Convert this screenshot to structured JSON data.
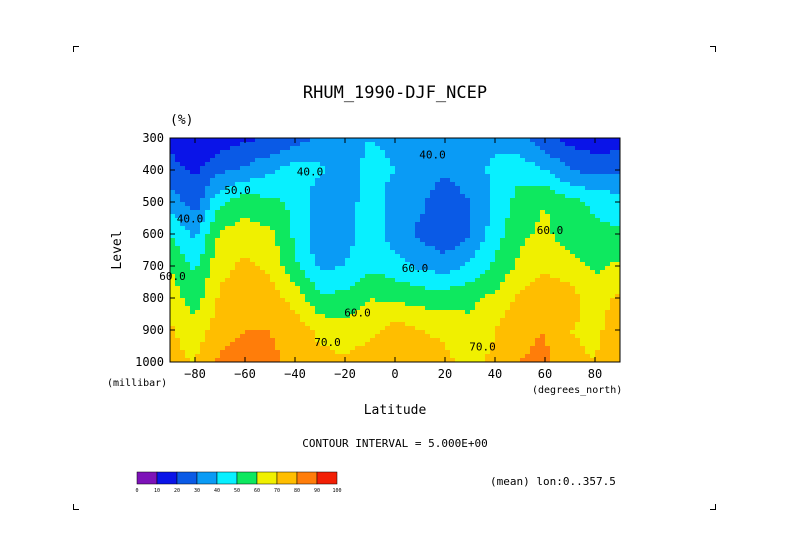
{
  "chart_data": {
    "type": "heatmap",
    "title": "RHUM_1990-DJF_NCEP",
    "units": "(%)",
    "xlabel": "Latitude",
    "ylabel": "Level",
    "x_unit": "(degrees_north)",
    "y_unit": "(millibar)",
    "xlim": [
      -90,
      90
    ],
    "ylim": [
      1000,
      300
    ],
    "x_ticks": [
      -80,
      -60,
      -40,
      -20,
      0,
      20,
      40,
      60,
      80
    ],
    "y_ticks": [
      300,
      400,
      500,
      600,
      700,
      800,
      900,
      1000
    ],
    "grid": false,
    "contour_interval_text": "CONTOUR INTERVAL = 5.000E+00",
    "mean_text": "(mean) lon:0..357.5",
    "contour_labels": [
      {
        "text": "50.0",
        "x": -63,
        "y": 465
      },
      {
        "text": "40.0",
        "x": 15,
        "y": 355
      },
      {
        "text": "40.0",
        "x": -34,
        "y": 408
      },
      {
        "text": "40.0",
        "x": -82,
        "y": 555
      },
      {
        "text": "60.0",
        "x": -89,
        "y": 735
      },
      {
        "text": "60.0",
        "x": 8,
        "y": 710
      },
      {
        "text": "60.0",
        "x": -15,
        "y": 848
      },
      {
        "text": "60.0",
        "x": 62,
        "y": 590
      },
      {
        "text": "70.0",
        "x": -27,
        "y": 940
      },
      {
        "text": "70.0",
        "x": 35,
        "y": 955
      }
    ],
    "colorbar": {
      "levels": [
        0,
        10,
        20,
        30,
        40,
        50,
        60,
        70,
        80,
        90,
        100
      ],
      "colors": [
        "#7d12b8",
        "#0a14e8",
        "#0a5ae6",
        "#0a9bf5",
        "#08f0ff",
        "#0ee85f",
        "#f0f000",
        "#ffbe00",
        "#ff7d0a",
        "#f21f05"
      ]
    },
    "levels": [
      300,
      400,
      500,
      600,
      700,
      800,
      900,
      1000
    ],
    "latitudes": [
      -90,
      -80,
      -70,
      -60,
      -50,
      -40,
      -30,
      -20,
      -10,
      0,
      10,
      20,
      30,
      40,
      50,
      60,
      70,
      80,
      90
    ],
    "values": [
      [
        15,
        10,
        14,
        18,
        20,
        25,
        32,
        36,
        40,
        38,
        36,
        33,
        38,
        38,
        33,
        22,
        16,
        14,
        15
      ],
      [
        25,
        18,
        28,
        32,
        38,
        45,
        42,
        36,
        43,
        40,
        35,
        31,
        36,
        42,
        46,
        40,
        30,
        26,
        28
      ],
      [
        35,
        25,
        48,
        55,
        52,
        48,
        32,
        36,
        44,
        36,
        32,
        24,
        30,
        42,
        55,
        60,
        53,
        48,
        44
      ],
      [
        50,
        38,
        62,
        65,
        62,
        48,
        32,
        36,
        45,
        35,
        28,
        22,
        30,
        45,
        58,
        62,
        55,
        52,
        52
      ],
      [
        60,
        48,
        67,
        72,
        68,
        52,
        38,
        40,
        48,
        44,
        38,
        35,
        42,
        52,
        62,
        68,
        64,
        58,
        62
      ],
      [
        65,
        55,
        72,
        76,
        74,
        66,
        52,
        53,
        60,
        58,
        56,
        55,
        58,
        62,
        72,
        78,
        74,
        66,
        72
      ],
      [
        72,
        64,
        76,
        80,
        80,
        76,
        67,
        63,
        66,
        75,
        70,
        68,
        62,
        70,
        78,
        80,
        70,
        68,
        75
      ],
      [
        72,
        70,
        82,
        84,
        82,
        78,
        74,
        72,
        78,
        80,
        76,
        72,
        68,
        72,
        80,
        82,
        72,
        70,
        76
      ]
    ]
  }
}
